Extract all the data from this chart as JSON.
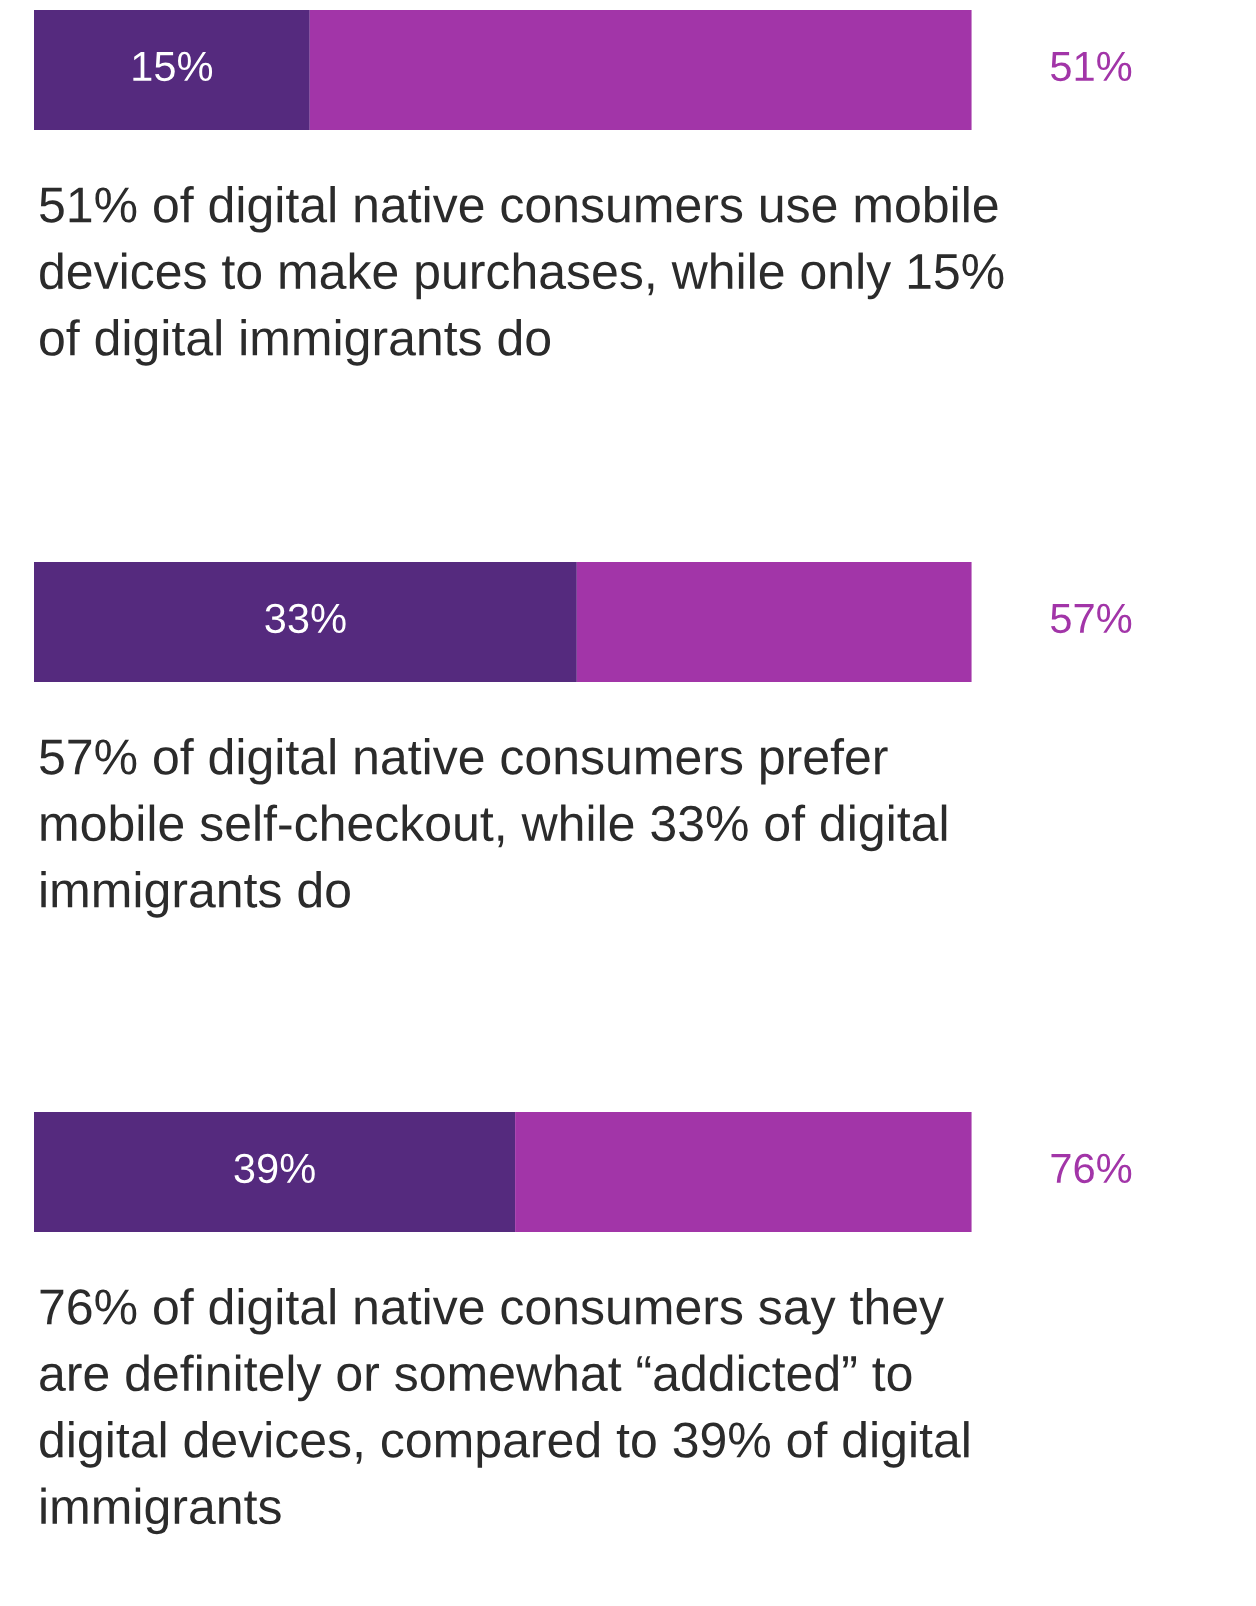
{
  "chart_data": [
    {
      "type": "bar",
      "orientation": "horizontal",
      "stacked": true,
      "categories": [
        null
      ],
      "series": [
        {
          "color": "#552a7e",
          "values": [
            15
          ],
          "value_labels": [
            "15%"
          ]
        },
        {
          "color": "#a235a8",
          "values": [
            36
          ]
        }
      ],
      "totals": [
        "51%"
      ],
      "annotations": [
        "51% of digital native consumers use mobile\ndevices to make purchases, while only 15%\nof digital immigrants do"
      ]
    },
    {
      "type": "bar",
      "orientation": "horizontal",
      "stacked": true,
      "categories": [
        null
      ],
      "series": [
        {
          "color": "#552a7e",
          "values": [
            33
          ],
          "value_labels": [
            "33%"
          ]
        },
        {
          "color": "#a235a8",
          "values": [
            24
          ]
        }
      ],
      "totals": [
        "57%"
      ],
      "annotations": [
        "57% of digital native consumers prefer\nmobile self-checkout, while 33% of digital\nimmigrants do"
      ]
    },
    {
      "type": "bar",
      "orientation": "horizontal",
      "stacked": true,
      "categories": [
        null
      ],
      "series": [
        {
          "color": "#552a7e",
          "values": [
            39
          ],
          "value_labels": [
            "39%"
          ]
        },
        {
          "color": "#a235a8",
          "values": [
            37
          ]
        }
      ],
      "totals": [
        "76%"
      ],
      "annotations": [
        "76% of digital native consumers say they\nare definitely or somewhat “addicted” to\ndigital devices, compared to 39% of digital\nimmigrants"
      ]
    }
  ]
}
